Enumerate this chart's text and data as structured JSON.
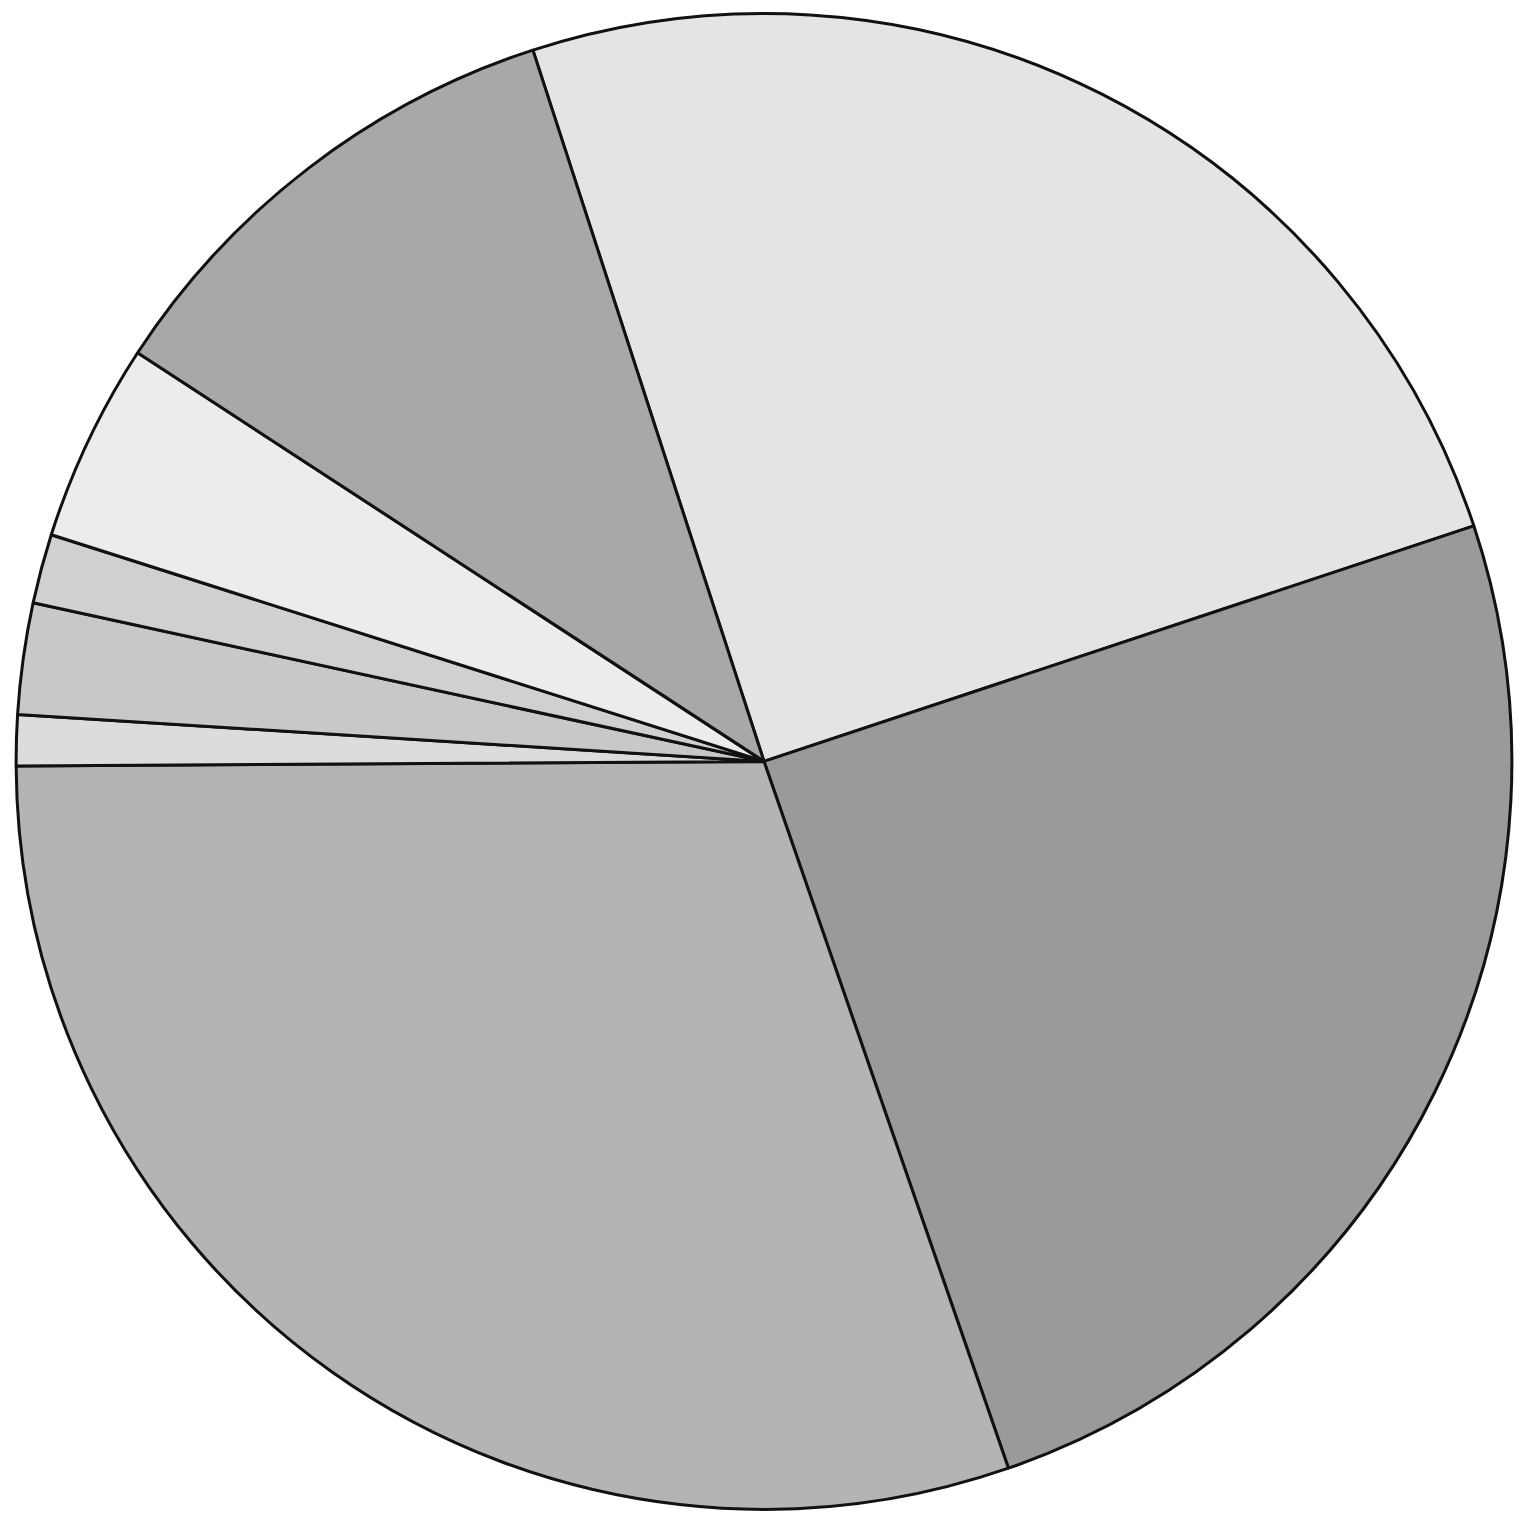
{
  "chart_data": {
    "type": "pie",
    "categories": [
      null,
      null,
      null,
      null,
      null,
      null,
      null,
      null
    ],
    "values": [
      24.9,
      24.8,
      30.2,
      1.1,
      2.4,
      1.5,
      4.3,
      10.8
    ],
    "colors": [
      "#e4e4e4",
      "#9a9a9a",
      "#b4b4b4",
      "#dcdcdc",
      "#c8c8c8",
      "#d0d0d0",
      "#ececec",
      "#a8a8a8"
    ]
  }
}
